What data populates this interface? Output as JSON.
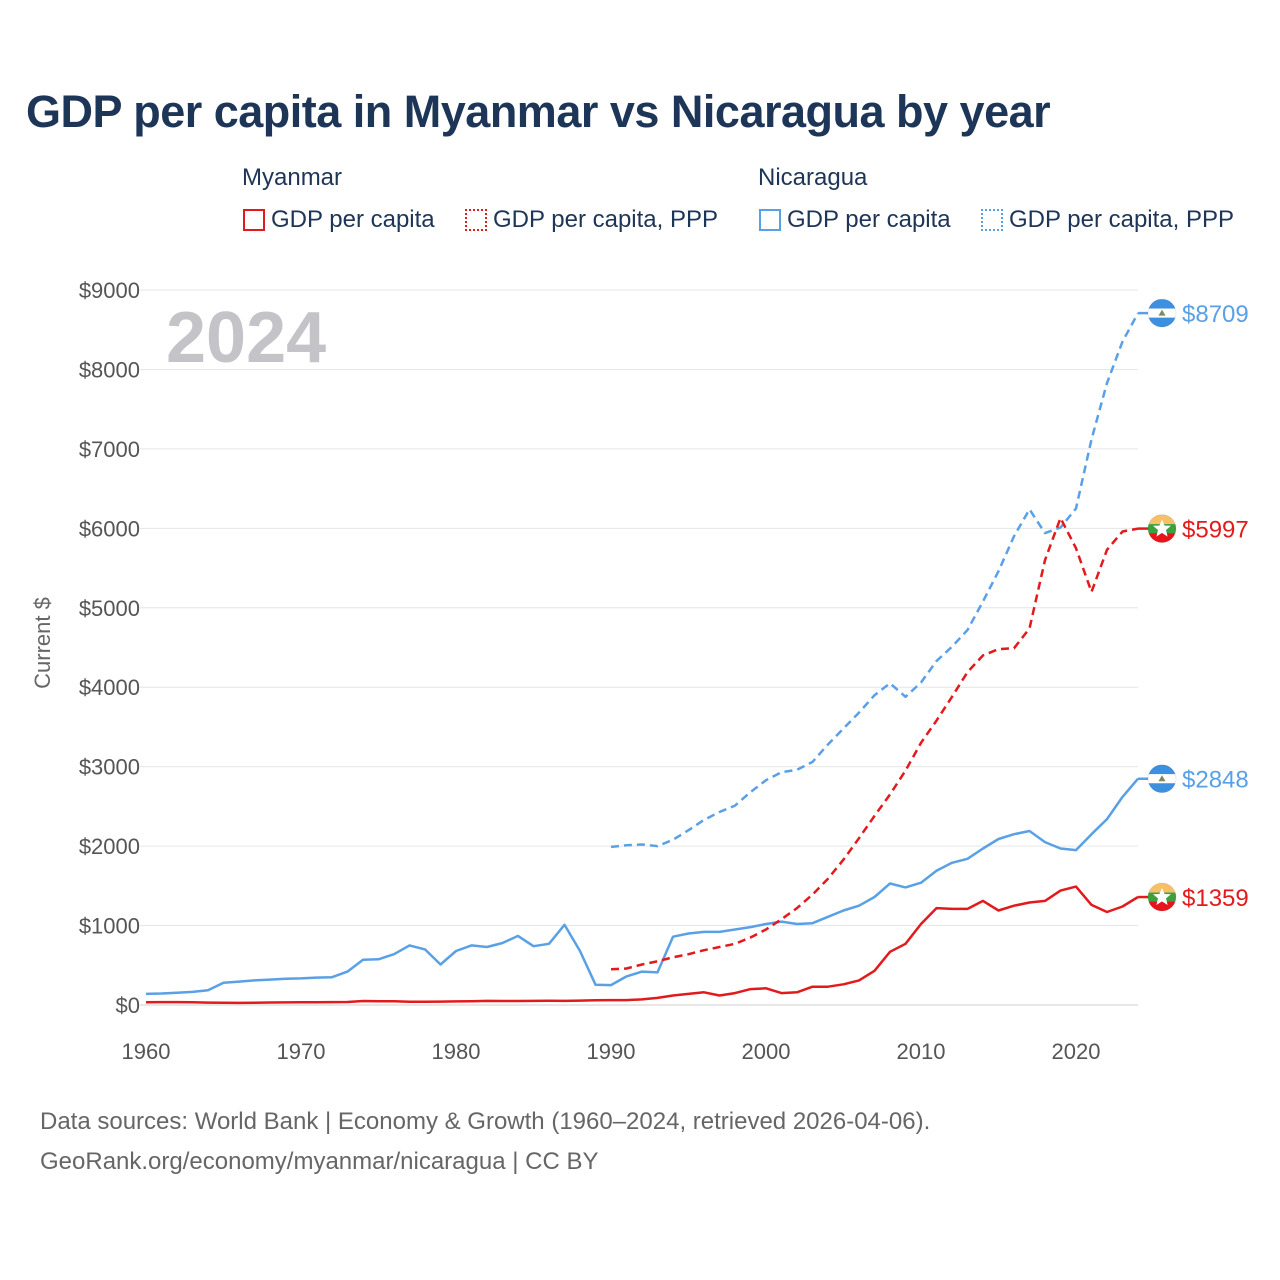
{
  "title": "GDP per capita in Myanmar vs Nicaragua by year",
  "legend": {
    "groups": [
      {
        "name": "Myanmar",
        "items": [
          "GDP per capita",
          "GDP per capita, PPP"
        ]
      },
      {
        "name": "Nicaragua",
        "items": [
          "GDP per capita",
          "GDP per capita, PPP"
        ]
      }
    ]
  },
  "colors": {
    "myanmar": "#e31a1c",
    "nicaragua": "#5aa0e6",
    "grid": "#e6e6e6",
    "title": "#1d3557"
  },
  "footer": {
    "line1": "Data sources: World Bank | Economy & Growth (1960–2024, retrieved 2026-04-06).",
    "line2": "GeoRank.org/economy/myanmar/nicaragua | CC BY"
  },
  "chart_data": {
    "type": "line",
    "title": "GDP per capita in Myanmar vs Nicaragua by year",
    "year_label": "2024",
    "xlabel": "",
    "ylabel": "Current $",
    "xlim": [
      1960,
      2024
    ],
    "ylim": [
      0,
      9000
    ],
    "x_ticks": [
      1960,
      1970,
      1980,
      1990,
      2000,
      2010,
      2020
    ],
    "y_ticks": [
      {
        "value": 0,
        "label": "$0"
      },
      {
        "value": 1000,
        "label": "$1000"
      },
      {
        "value": 2000,
        "label": "$2000"
      },
      {
        "value": 3000,
        "label": "$3000"
      },
      {
        "value": 4000,
        "label": "$4000"
      },
      {
        "value": 5000,
        "label": "$5000"
      },
      {
        "value": 6000,
        "label": "$6000"
      },
      {
        "value": 7000,
        "label": "$7000"
      },
      {
        "value": 8000,
        "label": "$8000"
      },
      {
        "value": 9000,
        "label": "$9000"
      }
    ],
    "grid": true,
    "series": [
      {
        "name": "Nicaragua GDP per capita",
        "country": "nicaragua",
        "dashed": false,
        "end_label": "$2848",
        "start_year": 1960,
        "values": [
          140,
          145,
          155,
          165,
          185,
          280,
          295,
          310,
          320,
          330,
          335,
          345,
          350,
          420,
          570,
          575,
          640,
          750,
          700,
          510,
          680,
          750,
          730,
          780,
          870,
          740,
          770,
          1010,
          680,
          255,
          250,
          360,
          420,
          410,
          860,
          900,
          920,
          920,
          950,
          980,
          1020,
          1050,
          1020,
          1030,
          1110,
          1190,
          1250,
          1360,
          1530,
          1480,
          1540,
          1690,
          1790,
          1840,
          1970,
          2090,
          2150,
          2190,
          2050,
          1970,
          1950,
          2150,
          2340,
          2620,
          2848
        ]
      },
      {
        "name": "Nicaragua GDP per capita, PPP",
        "country": "nicaragua",
        "dashed": true,
        "end_label": "$8709",
        "start_year": 1990,
        "values": [
          1990,
          2010,
          2020,
          2000,
          2080,
          2200,
          2330,
          2430,
          2510,
          2680,
          2830,
          2930,
          2960,
          3060,
          3280,
          3480,
          3680,
          3900,
          4050,
          3880,
          4060,
          4330,
          4510,
          4720,
          5080,
          5460,
          5900,
          6240,
          5940,
          6010,
          6250,
          7120,
          7830,
          8350,
          8709
        ]
      },
      {
        "name": "Myanmar GDP per capita",
        "country": "myanmar",
        "dashed": false,
        "end_label": "$1359",
        "start_year": 1960,
        "values": [
          35,
          37,
          37,
          35,
          30,
          28,
          27,
          29,
          32,
          33,
          34,
          35,
          36,
          38,
          50,
          48,
          48,
          40,
          42,
          43,
          45,
          48,
          52,
          50,
          50,
          52,
          53,
          52,
          55,
          60,
          62,
          62,
          70,
          90,
          120,
          140,
          160,
          120,
          150,
          200,
          210,
          150,
          160,
          230,
          230,
          260,
          310,
          430,
          670,
          770,
          1020,
          1220,
          1210,
          1210,
          1310,
          1190,
          1250,
          1290,
          1310,
          1440,
          1490,
          1260,
          1170,
          1240,
          1359
        ]
      },
      {
        "name": "Myanmar GDP per capita, PPP",
        "country": "myanmar",
        "dashed": true,
        "end_label": "$5997",
        "start_year": 1990,
        "values": [
          450,
          460,
          510,
          550,
          600,
          640,
          690,
          730,
          770,
          850,
          950,
          1080,
          1220,
          1390,
          1590,
          1830,
          2100,
          2380,
          2650,
          2950,
          3300,
          3580,
          3880,
          4190,
          4400,
          4480,
          4490,
          4740,
          5600,
          6130,
          5750,
          5200,
          5730,
          5960,
          5997
        ]
      }
    ]
  }
}
